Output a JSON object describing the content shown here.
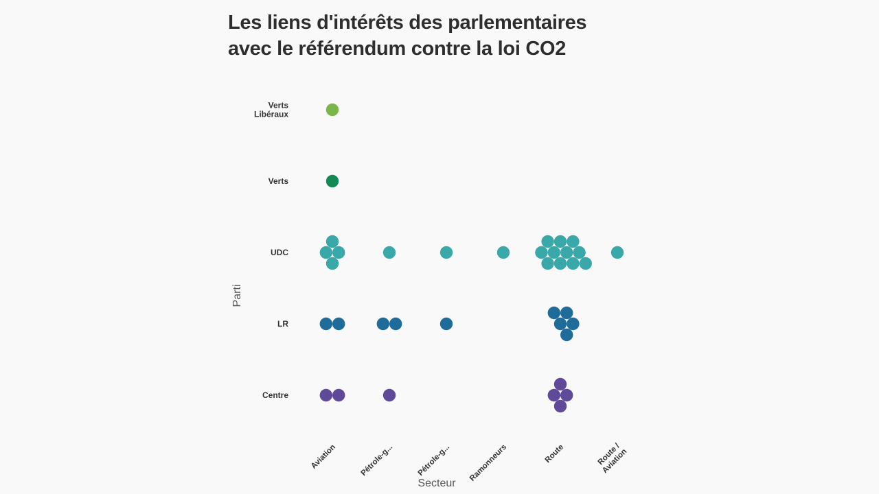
{
  "chart_data": {
    "type": "scatter",
    "subtype": "beeswarm",
    "title_lines": [
      "Les liens d'intérêts des parlementaires",
      "avec le référendum contre la loi CO2"
    ],
    "xlabel": "Secteur",
    "ylabel": "Parti",
    "categories": [
      "Aviation",
      "Pétrole-g...",
      "Pétrole-g...",
      "Ramonneurs",
      "Route",
      "Route / Aviation"
    ],
    "category_label_lines": [
      [
        "Aviation"
      ],
      [
        "Pétrole-g..."
      ],
      [
        "Pétrole-g..."
      ],
      [
        "Ramonneurs"
      ],
      [
        "Route"
      ],
      [
        "Route /",
        "Aviation"
      ]
    ],
    "rows": [
      {
        "name": "Verts Libéraux",
        "label_lines": [
          "Verts",
          "Libéraux"
        ],
        "color": "#7ab648",
        "counts": [
          1,
          0,
          0,
          0,
          0,
          0
        ]
      },
      {
        "name": "Verts",
        "label_lines": [
          "Verts"
        ],
        "color": "#138a55",
        "counts": [
          1,
          0,
          0,
          0,
          0,
          0
        ]
      },
      {
        "name": "UDC",
        "label_lines": [
          "UDC"
        ],
        "color": "#3aa8a8",
        "counts": [
          4,
          1,
          1,
          1,
          11,
          1
        ]
      },
      {
        "name": "LR",
        "label_lines": [
          "LR"
        ],
        "color": "#1f6b99",
        "counts": [
          2,
          2,
          1,
          0,
          5,
          0
        ]
      },
      {
        "name": "Centre",
        "label_lines": [
          "Centre"
        ],
        "color": "#5f4a9a",
        "counts": [
          2,
          1,
          0,
          0,
          4,
          0
        ]
      }
    ],
    "grid": false,
    "legend": "none"
  }
}
